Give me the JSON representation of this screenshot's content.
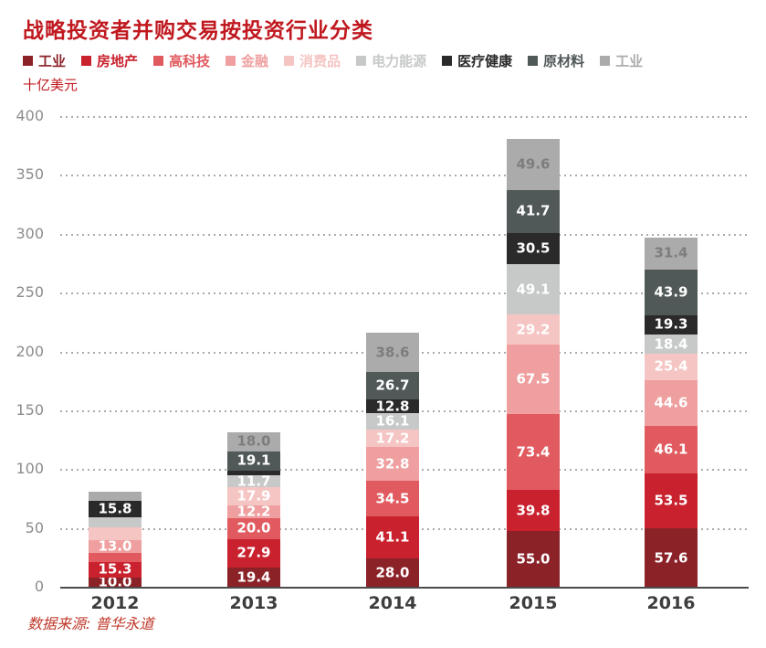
{
  "page": {
    "title": "战略投资者并购交易按投资行业分类",
    "title_color": "#c0181f",
    "unit_label": "十亿美元",
    "unit_color": "#c0181f",
    "source": "数据来源: 普华永道",
    "source_color": "#c0392b"
  },
  "chart_data": {
    "type": "bar",
    "stacked": true,
    "title": "战略投资者并购交易按投资行业分类",
    "ylabel": "十亿美元",
    "source": "数据来源: 普华永道",
    "categories": [
      "2012",
      "2013",
      "2014",
      "2015",
      "2016"
    ],
    "ylim": [
      0,
      400
    ],
    "yticks": [
      0,
      50,
      100,
      150,
      200,
      250,
      300,
      350,
      400
    ],
    "grid": "horizontal-dotted",
    "legend_position": "top",
    "series": [
      {
        "name": "工业",
        "color": "#8b2228",
        "label_color": "#ffffff",
        "values": [
          10.0,
          19.4,
          28.0,
          55.0,
          57.6
        ],
        "labels": [
          "10.0",
          "19.4",
          "28.0",
          "55.0",
          "57.6"
        ]
      },
      {
        "name": "房地产",
        "color": "#c9212e",
        "label_color": "#ffffff",
        "values": [
          15.3,
          27.9,
          41.1,
          39.8,
          53.5
        ],
        "labels": [
          "15.3",
          "27.9",
          "41.1",
          "39.8",
          "53.5"
        ]
      },
      {
        "name": "高科技",
        "color": "#e05a5f",
        "label_color": "#ffffff",
        "values": [
          8.0,
          20.0,
          34.5,
          73.4,
          46.1
        ],
        "labels": [
          "",
          "20.0",
          "34.5",
          "73.4",
          "46.1"
        ]
      },
      {
        "name": "金融",
        "color": "#ef9f9f",
        "label_color": "#ffffff",
        "values": [
          13.0,
          12.2,
          32.8,
          67.5,
          44.6
        ],
        "labels": [
          "13.0",
          "12.2",
          "32.8",
          "67.5",
          "44.6"
        ]
      },
      {
        "name": "消费品",
        "color": "#f5c5c3",
        "label_color": "#ffffff",
        "values": [
          12.0,
          17.9,
          17.2,
          29.2,
          25.4
        ],
        "labels": [
          "",
          "17.9",
          "17.2",
          "29.2",
          "25.4"
        ]
      },
      {
        "name": "电力能源",
        "color": "#c7c8c8",
        "label_color": "#ffffff",
        "values": [
          10.0,
          11.7,
          16.1,
          49.1,
          18.4
        ],
        "labels": [
          "",
          "11.7",
          "16.1",
          "49.1",
          "18.4"
        ]
      },
      {
        "name": "医疗健康",
        "color": "#2a2a2a",
        "label_color": "#ffffff",
        "values": [
          15.8,
          4.5,
          12.8,
          30.5,
          19.3
        ],
        "labels": [
          "15.8",
          "",
          "12.8",
          "30.5",
          "19.3"
        ]
      },
      {
        "name": "原材料",
        "color": "#515858",
        "label_color": "#ffffff",
        "values": [
          0,
          19.1,
          26.7,
          41.7,
          43.9
        ],
        "labels": [
          "",
          "19.1",
          "26.7",
          "41.7",
          "43.9"
        ]
      },
      {
        "name": "工业",
        "color": "#ababab",
        "label_color": "#7d7d7d",
        "values": [
          9.0,
          18.0,
          38.6,
          49.6,
          31.4
        ],
        "labels": [
          "",
          "18.0",
          "38.6",
          "49.6",
          "31.4"
        ]
      }
    ]
  }
}
